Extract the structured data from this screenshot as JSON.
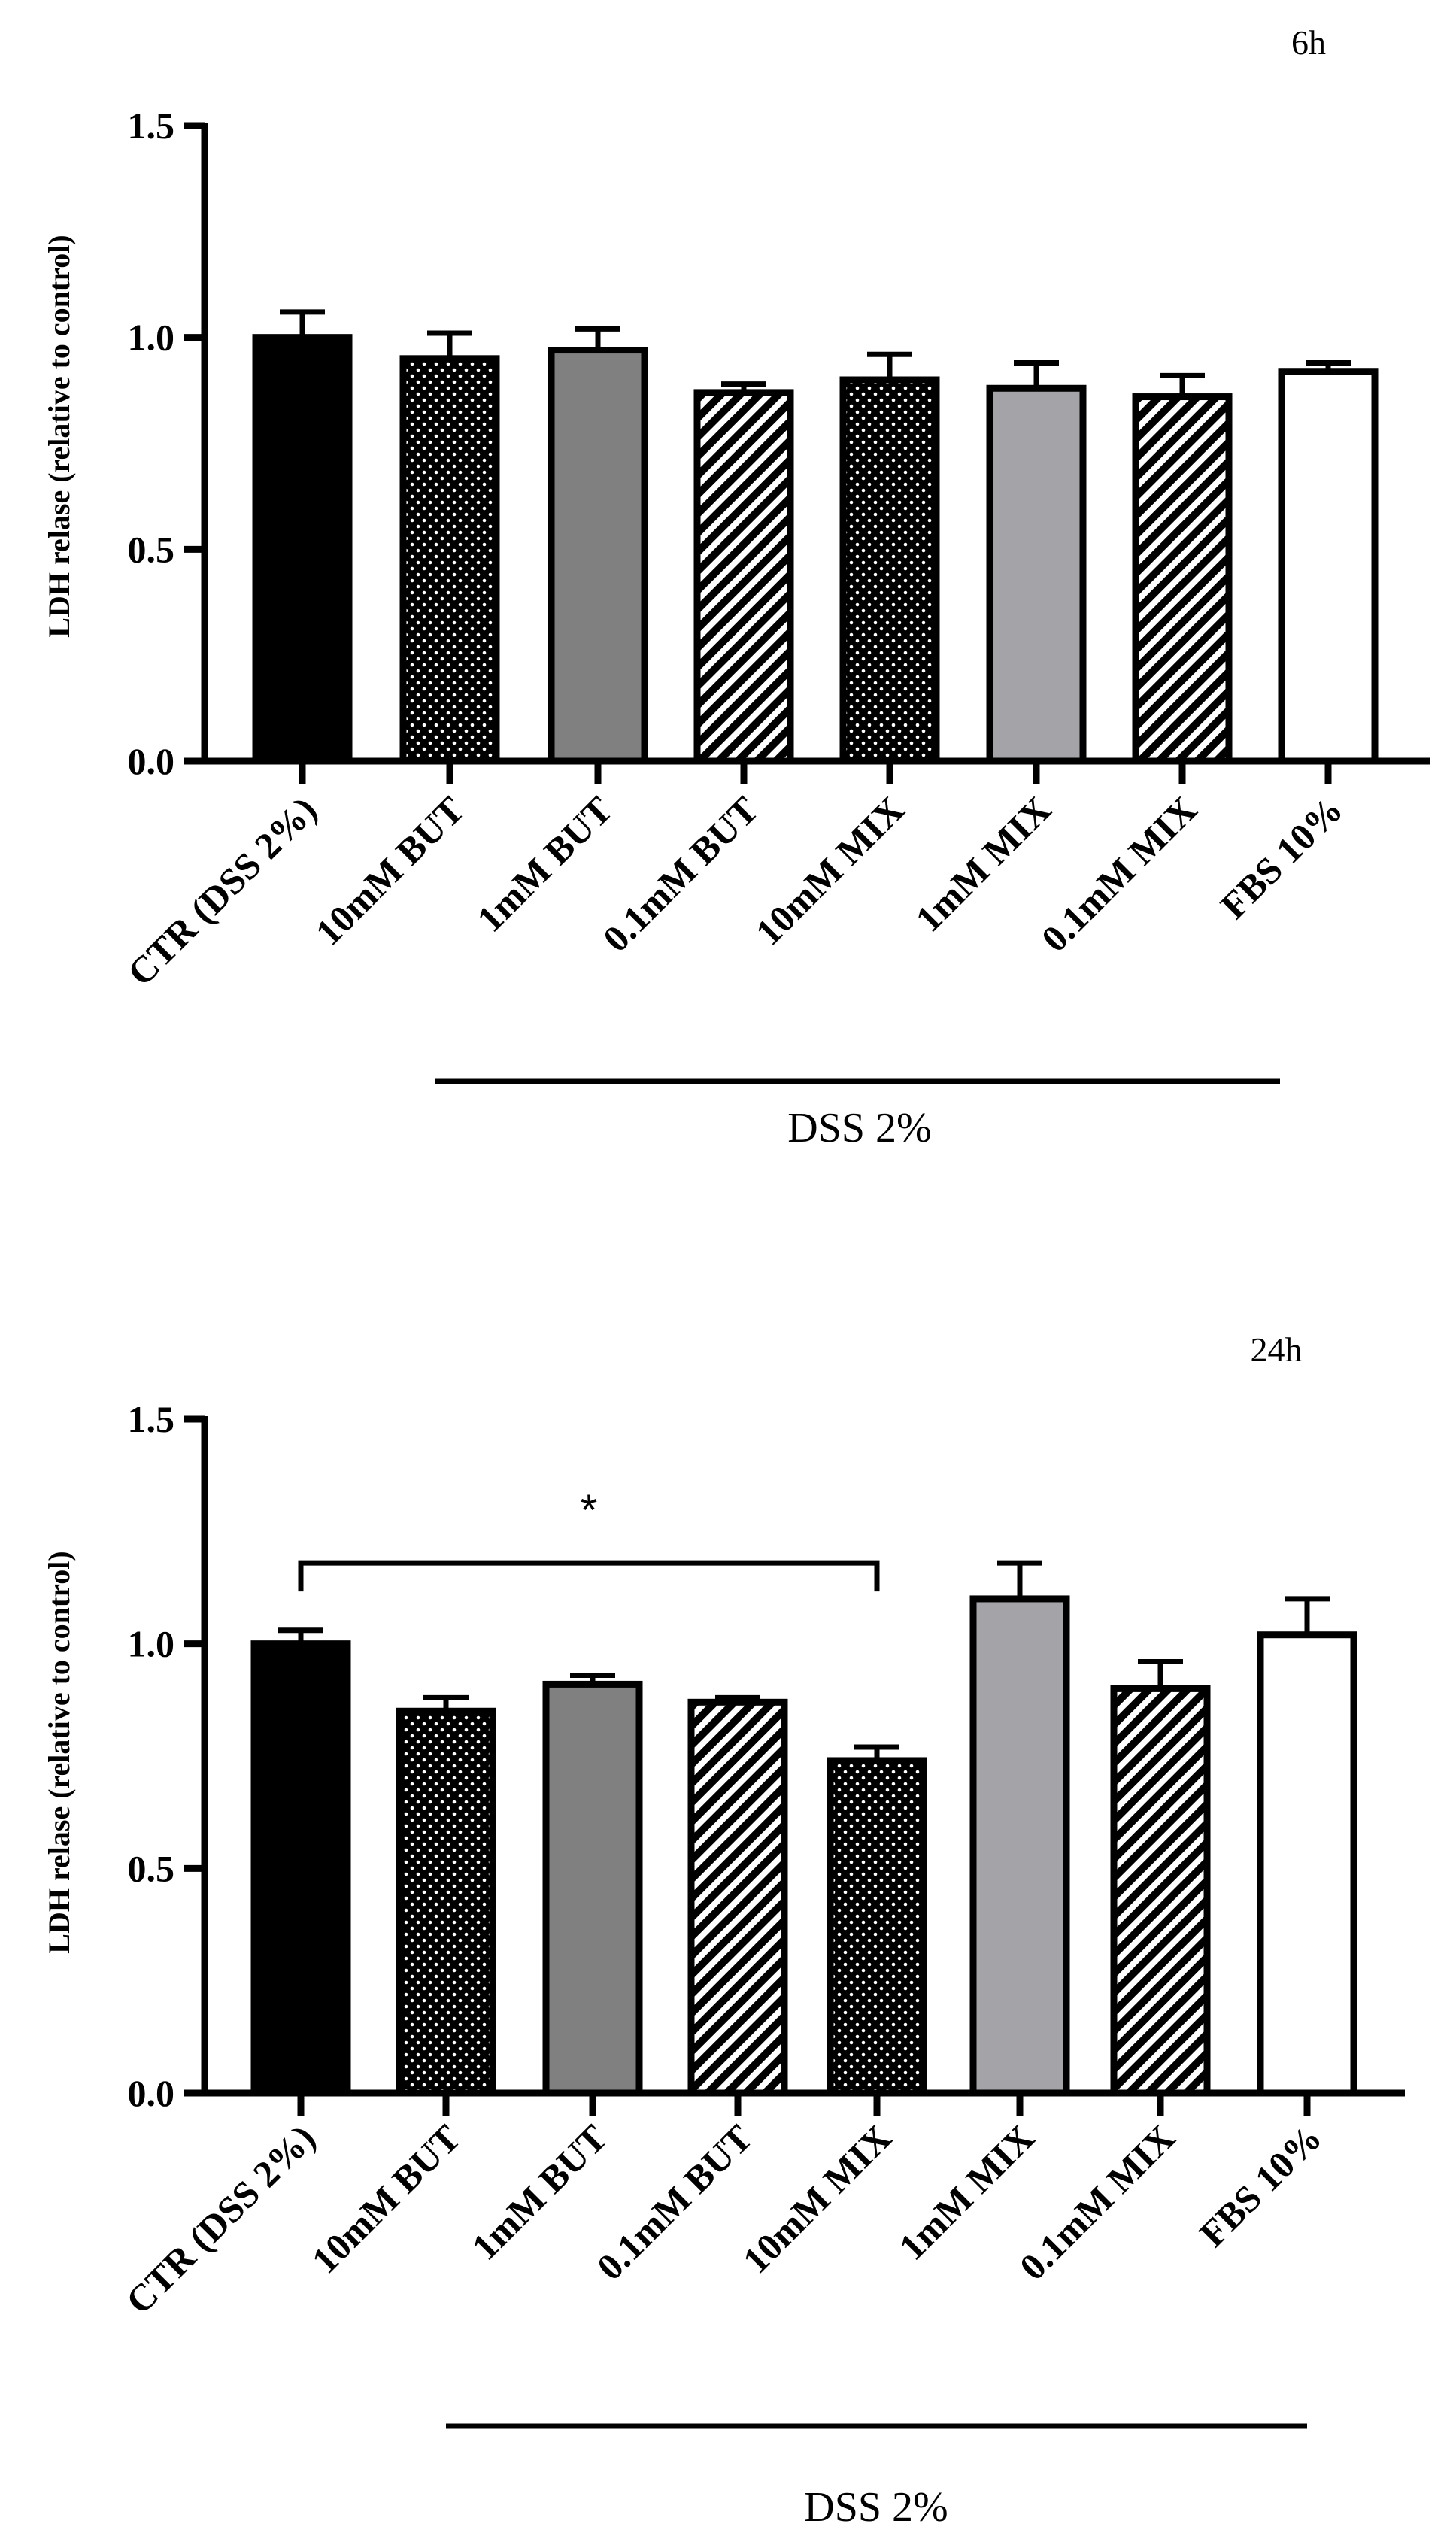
{
  "chart_data": [
    {
      "type": "bar",
      "title": "6h",
      "ylabel": "LDH relase (relative to control)",
      "xlabel": "",
      "ylim": [
        0,
        1.5
      ],
      "yticks": [
        "0.0",
        "0.5",
        "1.0",
        "1.5"
      ],
      "categories": [
        "CTR (DSS 2%)",
        "10mM BUT",
        "1mM BUT",
        "0.1mM BUT",
        "10mM MIX",
        "1mM MIX",
        "0.1mM MIX",
        "FBS 10%"
      ],
      "values": [
        1.0,
        0.95,
        0.97,
        0.87,
        0.9,
        0.88,
        0.86,
        0.92
      ],
      "errors": [
        0.06,
        0.06,
        0.05,
        0.02,
        0.06,
        0.06,
        0.05,
        0.02
      ],
      "fills": [
        "solid-black",
        "dots-black",
        "solid-darkgray",
        "hatch",
        "dots-black",
        "solid-lightgray",
        "hatch",
        "white"
      ],
      "group_label": "DSS 2%",
      "group_span": [
        1,
        6
      ],
      "significance": []
    },
    {
      "type": "bar",
      "title": "24h",
      "ylabel": "LDH relase (relative to control)",
      "xlabel": "",
      "ylim": [
        0,
        1.5
      ],
      "yticks": [
        "0.0",
        "0.5",
        "1.0",
        "1.5"
      ],
      "categories": [
        "CTR (DSS 2%)",
        "10mM BUT",
        "1mM BUT",
        "0.1mM BUT",
        "10mM MIX",
        "1mM MIX",
        "0.1mM MIX",
        "FBS 10%"
      ],
      "values": [
        1.0,
        0.85,
        0.91,
        0.87,
        0.74,
        1.1,
        0.9,
        1.02
      ],
      "errors": [
        0.03,
        0.03,
        0.02,
        0.01,
        0.03,
        0.08,
        0.06,
        0.08
      ],
      "fills": [
        "solid-black",
        "dots-black",
        "solid-darkgray",
        "hatch",
        "dots-black",
        "solid-lightgray",
        "hatch",
        "white"
      ],
      "group_label": "DSS 2%",
      "group_span": [
        1,
        6
      ],
      "significance": [
        {
          "from": 0,
          "to": 4,
          "label": "*",
          "y": 1.18
        }
      ]
    }
  ],
  "colors": {
    "solid-black": "#000000",
    "solid-darkgray": "#808080",
    "solid-lightgray": "#a3a3a8",
    "white": "#ffffff"
  }
}
